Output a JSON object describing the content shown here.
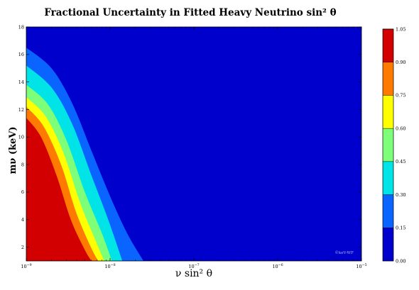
{
  "chart_data": {
    "type": "heatmap",
    "title": "Fractional Uncertainty in Fitted Heavy Neutrino sin² θ",
    "xlabel": "ν sin² θ",
    "ylabel": "mν (keV)",
    "x_scale": "log",
    "xlim": [
      1e-09,
      1e-05
    ],
    "ylim": [
      1,
      18
    ],
    "x_ticks": [
      {
        "value": 1e-09,
        "base": "10",
        "exp": "−9"
      },
      {
        "value": 1e-08,
        "base": "10",
        "exp": "−8"
      },
      {
        "value": 1e-07,
        "base": "10",
        "exp": "−7"
      },
      {
        "value": 1e-06,
        "base": "10",
        "exp": "−6"
      },
      {
        "value": 1e-05,
        "base": "10",
        "exp": "−5"
      }
    ],
    "y_ticks": [
      2,
      4,
      6,
      8,
      10,
      12,
      14,
      16,
      18
    ],
    "colorbar": {
      "levels": [
        "0.00",
        "0.15",
        "0.30",
        "0.45",
        "0.60",
        "0.75",
        "0.90",
        "1.05"
      ],
      "colors": [
        "#0000cd",
        "#0a64ff",
        "#00e4e8",
        "#7dff7a",
        "#ffff00",
        "#ff7a00",
        "#d20000"
      ]
    },
    "contour_boundaries": [
      {
        "level": 0.15,
        "points": [
          [
            1e-09,
            16.5
          ],
          [
            2e-09,
            15.0
          ],
          [
            3.5e-09,
            12.5
          ],
          [
            6e-09,
            9.0
          ],
          [
            1e-08,
            5.7
          ],
          [
            1.6e-08,
            3.0
          ],
          [
            2.5e-08,
            1.0
          ]
        ]
      },
      {
        "level": 0.3,
        "points": [
          [
            1e-09,
            15.2
          ],
          [
            2e-09,
            13.6
          ],
          [
            3.5e-09,
            11.0
          ],
          [
            6e-09,
            7.2
          ],
          [
            9.5e-09,
            4.0
          ],
          [
            1.4e-08,
            1.0
          ]
        ]
      },
      {
        "level": 0.45,
        "points": [
          [
            1e-09,
            13.8
          ],
          [
            1.8e-09,
            12.4
          ],
          [
            3e-09,
            9.8
          ],
          [
            5e-09,
            6.0
          ],
          [
            8e-09,
            3.0
          ],
          [
            1.05e-08,
            1.0
          ]
        ]
      },
      {
        "level": 0.6,
        "points": [
          [
            1e-09,
            12.9
          ],
          [
            1.7e-09,
            11.5
          ],
          [
            2.8e-09,
            8.8
          ],
          [
            4.4e-09,
            5.2
          ],
          [
            6.8e-09,
            2.4
          ],
          [
            8.5e-09,
            1.0
          ]
        ]
      },
      {
        "level": 0.75,
        "points": [
          [
            1e-09,
            12.2
          ],
          [
            1.6e-09,
            10.8
          ],
          [
            2.6e-09,
            8.0
          ],
          [
            3.9e-09,
            4.6
          ],
          [
            5.8e-09,
            2.1
          ],
          [
            7.2e-09,
            1.0
          ]
        ]
      },
      {
        "level": 0.9,
        "points": [
          [
            1e-09,
            11.4
          ],
          [
            1.5e-09,
            10.0
          ],
          [
            2.3e-09,
            7.2
          ],
          [
            3.4e-09,
            4.0
          ],
          [
            5e-09,
            1.8
          ],
          [
            6e-09,
            1.0
          ]
        ]
      }
    ],
    "watermark": "©keV-WF"
  }
}
